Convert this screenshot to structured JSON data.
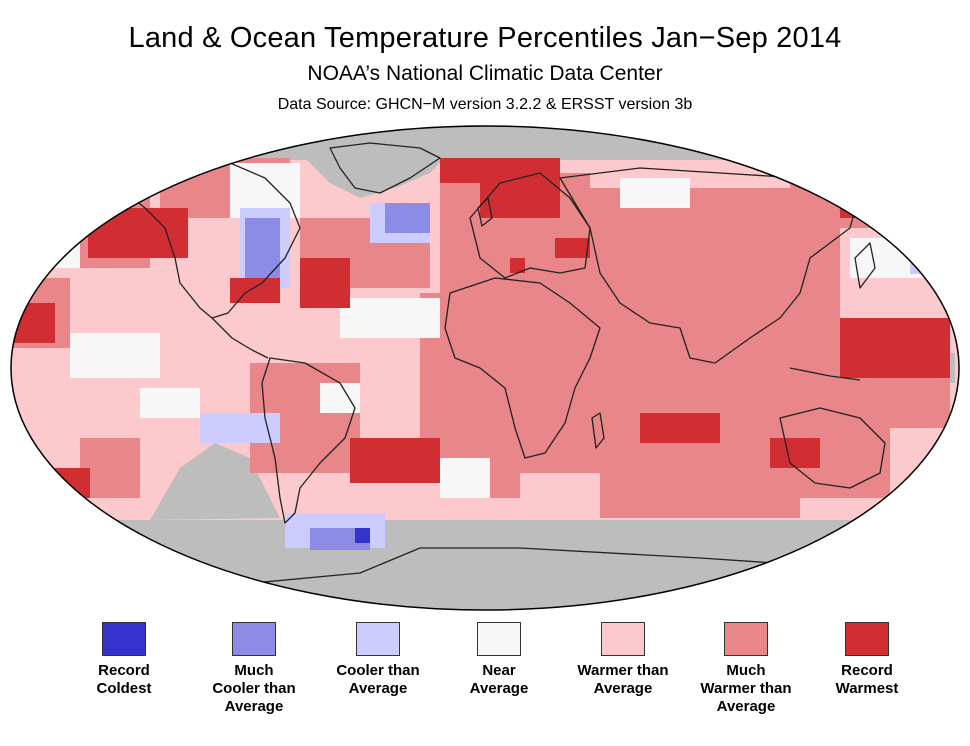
{
  "header": {
    "title": "Land & Ocean Temperature Percentiles Jan−Sep 2014",
    "subtitle": "NOAA’s National Climatic Data Center",
    "source": "Data Source: GHCN−M version 3.2.2 & ERSST version 3b"
  },
  "colors": {
    "record_coldest": "#3333cc",
    "much_cooler": "#8c8ce6",
    "cooler": "#ccccff",
    "near": "#f7f7f7",
    "warmer": "#fcc9cc",
    "much_warmer": "#e8868a",
    "record_warmest": "#d12e33",
    "missing": "#bdbdbd",
    "coast": "#222222"
  },
  "legend": [
    {
      "label": "Record\nColdest",
      "color": "#3333cc"
    },
    {
      "label": "Much\nCooler than\nAverage",
      "color": "#8c8ce6"
    },
    {
      "label": "Cooler than\nAverage",
      "color": "#ccccff"
    },
    {
      "label": "Near\nAverage",
      "color": "#f7f7f7"
    },
    {
      "label": "Warmer than\nAverage",
      "color": "#fcc9cc"
    },
    {
      "label": "Much\nWarmer than\nAverage",
      "color": "#e8868a"
    },
    {
      "label": "Record\nWarmest",
      "color": "#d12e33"
    }
  ]
}
